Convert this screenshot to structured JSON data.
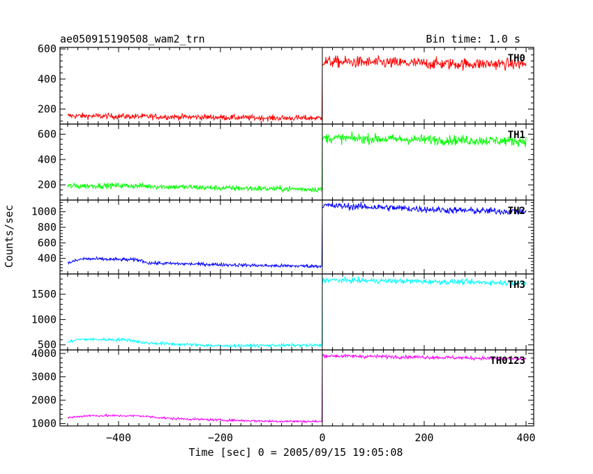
{
  "chart_data": {
    "type": "line",
    "title": "ae050915190508_wam2_trn",
    "bin_time": "Bin time: 1.0 s",
    "xlabel": "Time [sec] 0 = 2005/09/15 19:05:08",
    "ylabel": "Counts/sec",
    "xlim": [
      -515,
      415
    ],
    "x_ticks": [
      -400,
      -200,
      0,
      200,
      400
    ],
    "x_tick_labels": [
      "−400",
      "−200",
      "0",
      "200",
      "400"
    ],
    "x_range": [
      -500,
      400
    ],
    "step_time": 0,
    "grid": false,
    "legend": "none",
    "panels": [
      {
        "label": "TH0",
        "color": "#ff0000",
        "ylim": [
          100,
          610
        ],
        "y_ticks": [
          200,
          400,
          600
        ],
        "y_tick_labels": [
          "200",
          "400",
          "600"
        ],
        "before": [
          [
            -500,
            155
          ],
          [
            -350,
            150
          ],
          [
            -200,
            145
          ],
          [
            -100,
            140
          ],
          [
            -5,
            140
          ]
        ],
        "after": [
          [
            0,
            515
          ],
          [
            100,
            510
          ],
          [
            250,
            500
          ],
          [
            400,
            500
          ]
        ],
        "noise_before": 14,
        "noise_after": 28
      },
      {
        "label": "TH1",
        "color": "#00ff00",
        "ylim": [
          80,
          680
        ],
        "y_ticks": [
          200,
          400,
          600
        ],
        "y_tick_labels": [
          "200",
          "400",
          "600"
        ],
        "before": [
          [
            -500,
            190
          ],
          [
            -400,
            195
          ],
          [
            -300,
            185
          ],
          [
            -200,
            175
          ],
          [
            -5,
            165
          ]
        ],
        "after": [
          [
            0,
            570
          ],
          [
            150,
            560
          ],
          [
            400,
            545
          ]
        ],
        "noise_before": 16,
        "noise_after": 28
      },
      {
        "label": "TH2",
        "color": "#0000ff",
        "ylim": [
          200,
          1150
        ],
        "y_ticks": [
          400,
          600,
          800,
          1000
        ],
        "y_tick_labels": [
          "400",
          "600",
          "800",
          "1000"
        ],
        "before": [
          [
            -500,
            340
          ],
          [
            -470,
            395
          ],
          [
            -360,
            380
          ],
          [
            -340,
            340
          ],
          [
            -200,
            320
          ],
          [
            -100,
            305
          ],
          [
            -5,
            300
          ]
        ],
        "after": [
          [
            0,
            1080
          ],
          [
            100,
            1060
          ],
          [
            250,
            1020
          ],
          [
            400,
            1000
          ]
        ],
        "noise_before": 16,
        "noise_after": 32
      },
      {
        "label": "TH3",
        "color": "#00ffff",
        "ylim": [
          400,
          1900
        ],
        "y_ticks": [
          500,
          1000,
          1500
        ],
        "y_tick_labels": [
          "500",
          "1000",
          "1500"
        ],
        "before": [
          [
            -500,
            550
          ],
          [
            -480,
            610
          ],
          [
            -380,
            600
          ],
          [
            -350,
            540
          ],
          [
            -200,
            480
          ],
          [
            -100,
            490
          ],
          [
            -5,
            490
          ]
        ],
        "after": [
          [
            0,
            1780
          ],
          [
            150,
            1760
          ],
          [
            400,
            1720
          ]
        ],
        "noise_before": 22,
        "noise_after": 38
      },
      {
        "label": "TH0123",
        "color": "#ff00ff",
        "ylim": [
          900,
          4150
        ],
        "y_ticks": [
          1000,
          2000,
          3000,
          4000
        ],
        "y_tick_labels": [
          "1000",
          "2000",
          "3000",
          "4000"
        ],
        "before": [
          [
            -500,
            1250
          ],
          [
            -460,
            1340
          ],
          [
            -360,
            1330
          ],
          [
            -300,
            1220
          ],
          [
            -200,
            1150
          ],
          [
            -100,
            1100
          ],
          [
            -5,
            1090
          ]
        ],
        "after": [
          [
            0,
            3900
          ],
          [
            200,
            3840
          ],
          [
            400,
            3760
          ]
        ],
        "noise_before": 35,
        "noise_after": 55
      }
    ]
  }
}
